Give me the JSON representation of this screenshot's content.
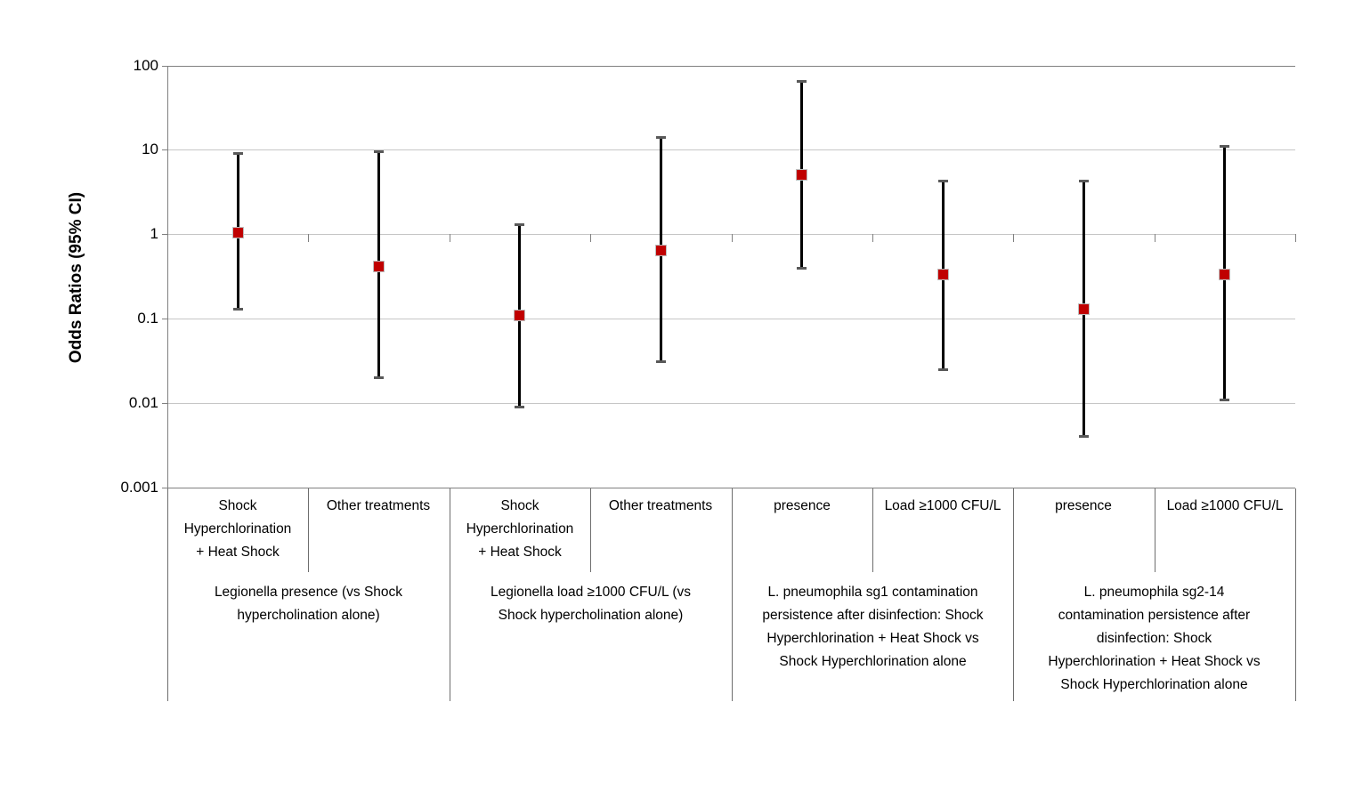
{
  "chart_data": {
    "type": "scatter",
    "subtype": "odds-ratio-forest-plot-with-95ci-error-bars",
    "title": "",
    "xlabel": "",
    "ylabel": "Odds Ratios (95% CI)",
    "yscale": "log",
    "ylim": [
      0.001,
      100
    ],
    "ytick_values": [
      100,
      10,
      1,
      0.1,
      0.01,
      0.001
    ],
    "ytick_labels": [
      "100",
      "10",
      "1",
      "0.1",
      "0.01",
      "0.001"
    ],
    "grid": true,
    "legend": "none",
    "marker_shape": "square",
    "colors": {
      "marker": "#c00000",
      "marker_border": "#bebebe",
      "whisker": "#000000",
      "whisker_cap": "#595959",
      "gridline": "#c6c6c6",
      "axis": "#808080",
      "divider": "#6e6e6e",
      "text": "#000000",
      "background": "#ffffff"
    },
    "groups": [
      {
        "label": "Legionella presence (vs Shock\nhypercholination alone)",
        "points": [
          {
            "label": "Shock\nHyperchlorination\n+ Heat Shock",
            "or": 1.05,
            "ci_low": 0.13,
            "ci_high": 9.0
          },
          {
            "label": "Other treatments",
            "or": 0.42,
            "ci_low": 0.02,
            "ci_high": 9.6
          }
        ]
      },
      {
        "label": "Legionella load ≥1000 CFU/L (vs\nShock hypercholination alone)",
        "points": [
          {
            "label": "Shock\nHyperchlorination\n+ Heat Shock",
            "or": 0.11,
            "ci_low": 0.009,
            "ci_high": 1.3
          },
          {
            "label": "Other treatments",
            "or": 0.65,
            "ci_low": 0.031,
            "ci_high": 14
          }
        ]
      },
      {
        "label": "L. pneumophila sg1 contamination\npersistence after disinfection: Shock\nHyperchlorination + Heat Shock vs\nShock Hyperchlorination alone",
        "points": [
          {
            "label": "presence",
            "or": 5.0,
            "ci_low": 0.4,
            "ci_high": 65
          },
          {
            "label": "Load ≥1000 CFU/L",
            "or": 0.33,
            "ci_low": 0.025,
            "ci_high": 4.3
          }
        ]
      },
      {
        "label": "L. pneumophila sg2-14\ncontamination persistence after\ndisinfection: Shock\nHyperchlorination + Heat Shock vs\nShock Hyperchlorination alone",
        "points": [
          {
            "label": "presence",
            "or": 0.13,
            "ci_low": 0.004,
            "ci_high": 4.3
          },
          {
            "label": "Load ≥1000 CFU/L",
            "or": 0.33,
            "ci_low": 0.011,
            "ci_high": 11
          }
        ]
      }
    ]
  }
}
